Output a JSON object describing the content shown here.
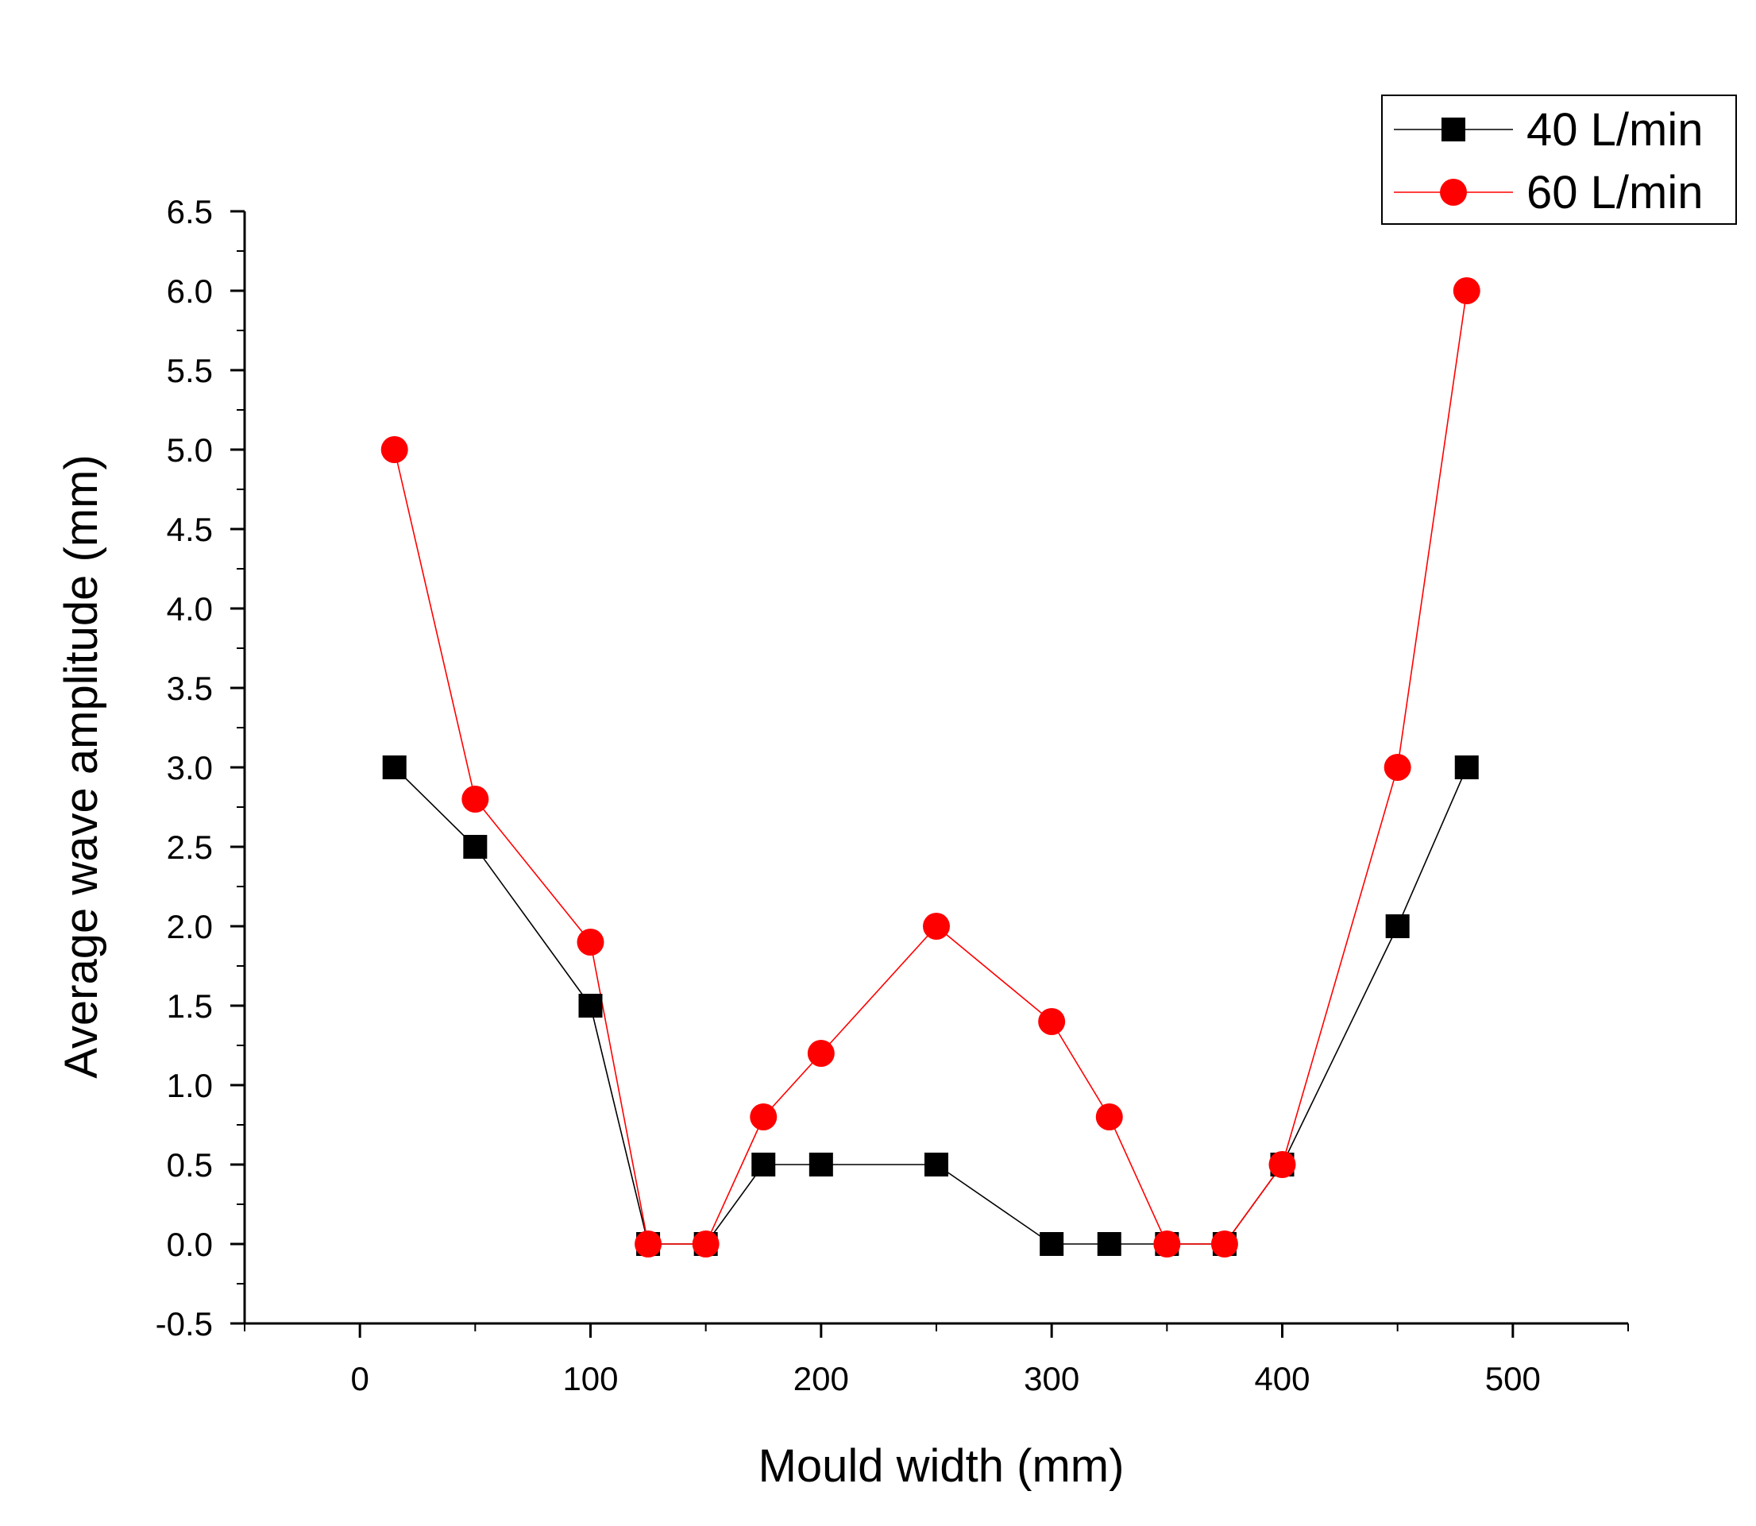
{
  "chart_data": {
    "type": "line",
    "title": "",
    "xlabel": "Mould width (mm)",
    "ylabel": "Average wave amplitude (mm)",
    "xlim": [
      -50,
      550
    ],
    "ylim": [
      -0.5,
      6.5
    ],
    "x_ticks": [
      0,
      100,
      200,
      300,
      400,
      500
    ],
    "x_tick_labels": [
      "0",
      "100",
      "200",
      "300",
      "400",
      "500"
    ],
    "y_ticks": [
      -0.5,
      0.0,
      0.5,
      1.0,
      1.5,
      2.0,
      2.5,
      3.0,
      3.5,
      4.0,
      4.5,
      5.0,
      5.5,
      6.0,
      6.5
    ],
    "y_tick_labels": [
      "-0.5",
      "0.0",
      "0.5",
      "1.0",
      "1.5",
      "2.0",
      "2.5",
      "3.0",
      "3.5",
      "4.0",
      "4.5",
      "5.0",
      "5.5",
      "6.0",
      "6.5"
    ],
    "grid": false,
    "legend_position": "top-right",
    "series": [
      {
        "name": "40 L/min",
        "marker": "square",
        "color": "#000000",
        "x": [
          15,
          50,
          100,
          125,
          150,
          175,
          200,
          250,
          300,
          325,
          350,
          375,
          400,
          450,
          480
        ],
        "values": [
          3.0,
          2.5,
          1.5,
          0.0,
          0.0,
          0.5,
          0.5,
          0.5,
          0.0,
          0.0,
          0.0,
          0.0,
          0.5,
          2.0,
          3.0
        ]
      },
      {
        "name": "60 L/min",
        "marker": "circle",
        "color": "#ff0000",
        "x": [
          15,
          50,
          100,
          125,
          150,
          175,
          200,
          250,
          300,
          325,
          350,
          375,
          400,
          450,
          480
        ],
        "values": [
          5.0,
          2.8,
          1.9,
          0.0,
          0.0,
          0.8,
          1.2,
          2.0,
          1.4,
          0.8,
          0.0,
          0.0,
          0.5,
          3.0,
          6.0
        ]
      }
    ]
  }
}
